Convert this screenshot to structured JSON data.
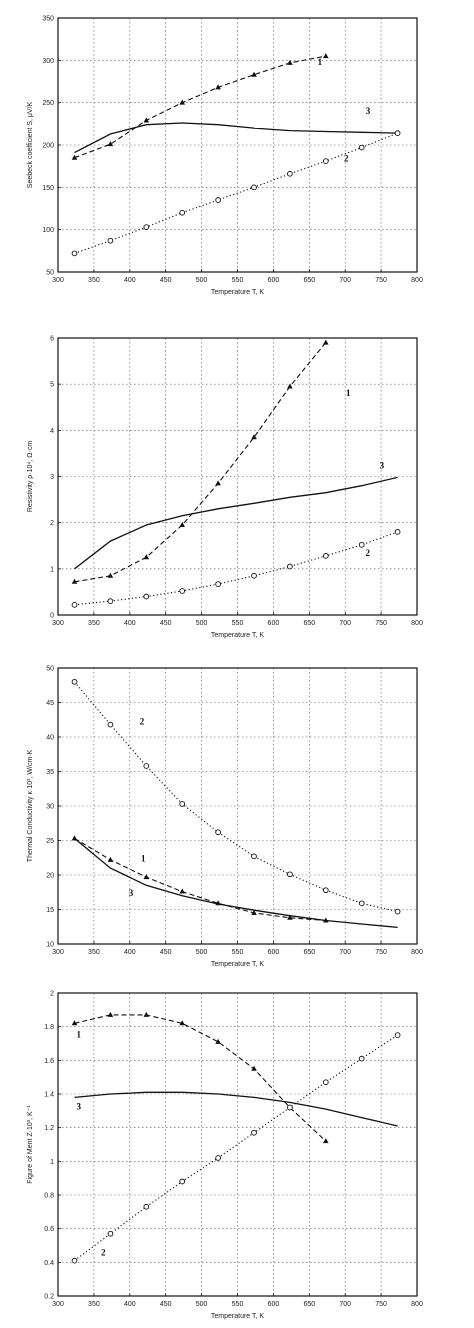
{
  "chart_data": [
    {
      "type": "line",
      "xlabel": "Temperature  T, K",
      "ylabel": "Seebeck coefficient  S, μV/K",
      "xlim": [
        300,
        800
      ],
      "ylim": [
        50,
        350
      ],
      "xticks": [
        300,
        350,
        400,
        450,
        500,
        550,
        600,
        650,
        700,
        750,
        800
      ],
      "yticks": [
        50,
        100,
        150,
        200,
        250,
        300,
        350
      ],
      "grid": true,
      "series": [
        {
          "name": "1",
          "style": "dashed",
          "marker": "triangle",
          "x": [
            323,
            373,
            423,
            473,
            523,
            573,
            623,
            673
          ],
          "y": [
            185,
            201,
            229,
            250,
            268,
            283,
            297,
            305
          ]
        },
        {
          "name": "3",
          "style": "solid",
          "marker": "none",
          "x": [
            323,
            373,
            423,
            473,
            523,
            573,
            623,
            673,
            723,
            773
          ],
          "y": [
            191,
            213,
            224,
            226,
            224,
            220,
            217,
            216,
            215,
            214
          ]
        },
        {
          "name": "2",
          "style": "dotted",
          "marker": "circle",
          "x": [
            323,
            373,
            423,
            473,
            523,
            573,
            623,
            673,
            723,
            773
          ],
          "y": [
            72,
            87,
            103,
            120,
            135,
            150,
            166,
            181,
            197,
            214
          ]
        }
      ]
    },
    {
      "type": "line",
      "xlabel": "Temperature  T, K",
      "ylabel": "Resistivity  ρ·10⁴, Ω·cm",
      "xlim": [
        300,
        800
      ],
      "ylim": [
        0,
        6
      ],
      "xticks": [
        300,
        350,
        400,
        450,
        500,
        550,
        600,
        650,
        700,
        750,
        800
      ],
      "yticks": [
        0,
        1,
        2,
        3,
        4,
        5,
        6
      ],
      "grid": true,
      "series": [
        {
          "name": "1",
          "style": "dashed",
          "marker": "triangle",
          "x": [
            323,
            373,
            423,
            473,
            523,
            573,
            623,
            673
          ],
          "y": [
            0.72,
            0.85,
            1.25,
            1.95,
            2.85,
            3.85,
            4.95,
            5.9
          ]
        },
        {
          "name": "3",
          "style": "solid",
          "marker": "none",
          "x": [
            323,
            373,
            423,
            473,
            523,
            573,
            623,
            673,
            723,
            773
          ],
          "y": [
            1.0,
            1.6,
            1.95,
            2.15,
            2.3,
            2.42,
            2.55,
            2.65,
            2.8,
            2.98
          ]
        },
        {
          "name": "2",
          "style": "dotted",
          "marker": "circle",
          "x": [
            323,
            373,
            423,
            473,
            523,
            573,
            623,
            673,
            723,
            773
          ],
          "y": [
            0.22,
            0.3,
            0.4,
            0.52,
            0.67,
            0.85,
            1.05,
            1.28,
            1.52,
            1.8
          ]
        }
      ]
    },
    {
      "type": "line",
      "xlabel": "Temperature  T, K",
      "ylabel": "Thermal Conductivity  κ·10³, W/cm·K",
      "xlim": [
        300,
        800
      ],
      "ylim": [
        10,
        50
      ],
      "xticks": [
        300,
        350,
        400,
        450,
        500,
        550,
        600,
        650,
        700,
        750,
        800
      ],
      "yticks": [
        10,
        15,
        20,
        25,
        30,
        35,
        40,
        45,
        50
      ],
      "grid": true,
      "series": [
        {
          "name": "2",
          "style": "dotted",
          "marker": "circle",
          "x": [
            323,
            373,
            423,
            473,
            523,
            573,
            623,
            673,
            723,
            773
          ],
          "y": [
            48,
            41.8,
            35.8,
            30.3,
            26.2,
            22.7,
            20.1,
            17.8,
            15.9,
            14.7
          ]
        },
        {
          "name": "1",
          "style": "dashed",
          "marker": "triangle",
          "x": [
            323,
            373,
            423,
            473,
            523,
            573,
            623,
            673
          ],
          "y": [
            25.3,
            22.2,
            19.7,
            17.6,
            15.9,
            14.5,
            13.8,
            13.4
          ]
        },
        {
          "name": "3",
          "style": "solid",
          "marker": "none",
          "x": [
            323,
            373,
            423,
            473,
            523,
            573,
            623,
            673,
            723,
            773
          ],
          "y": [
            25.3,
            21.0,
            18.5,
            17.0,
            15.8,
            14.9,
            14.1,
            13.4,
            12.9,
            12.4
          ]
        }
      ]
    },
    {
      "type": "line",
      "xlabel": "Temperature T, K",
      "ylabel": "Figure of Merit  Z·10³, K⁻¹",
      "xlim": [
        300,
        800
      ],
      "ylim": [
        0.2,
        2.0
      ],
      "xticks": [
        300,
        350,
        400,
        450,
        500,
        550,
        600,
        650,
        700,
        750,
        800
      ],
      "yticks": [
        0.2,
        0.4,
        0.6,
        0.8,
        1.0,
        1.2,
        1.4,
        1.6,
        1.8,
        2.0
      ],
      "yticklabels": [
        "0.2",
        "0.4",
        "0.6",
        "0.8",
        "1",
        "1.2",
        "1.4",
        "1.6",
        "1.8",
        "2"
      ],
      "grid": true,
      "series": [
        {
          "name": "1",
          "style": "dashed",
          "marker": "triangle",
          "x": [
            323,
            373,
            423,
            473,
            523,
            573,
            623,
            673
          ],
          "y": [
            1.82,
            1.87,
            1.87,
            1.82,
            1.71,
            1.55,
            1.32,
            1.12
          ]
        },
        {
          "name": "3",
          "style": "solid",
          "marker": "none",
          "x": [
            323,
            373,
            423,
            473,
            523,
            573,
            623,
            673,
            723,
            773
          ],
          "y": [
            1.38,
            1.4,
            1.41,
            1.41,
            1.4,
            1.38,
            1.35,
            1.31,
            1.26,
            1.21
          ]
        },
        {
          "name": "2",
          "style": "dotted",
          "marker": "circle",
          "x": [
            323,
            373,
            423,
            473,
            523,
            573,
            623,
            673,
            723,
            773
          ],
          "y": [
            0.41,
            0.57,
            0.73,
            0.88,
            1.02,
            1.17,
            1.32,
            1.47,
            1.61,
            1.75
          ]
        }
      ]
    }
  ]
}
